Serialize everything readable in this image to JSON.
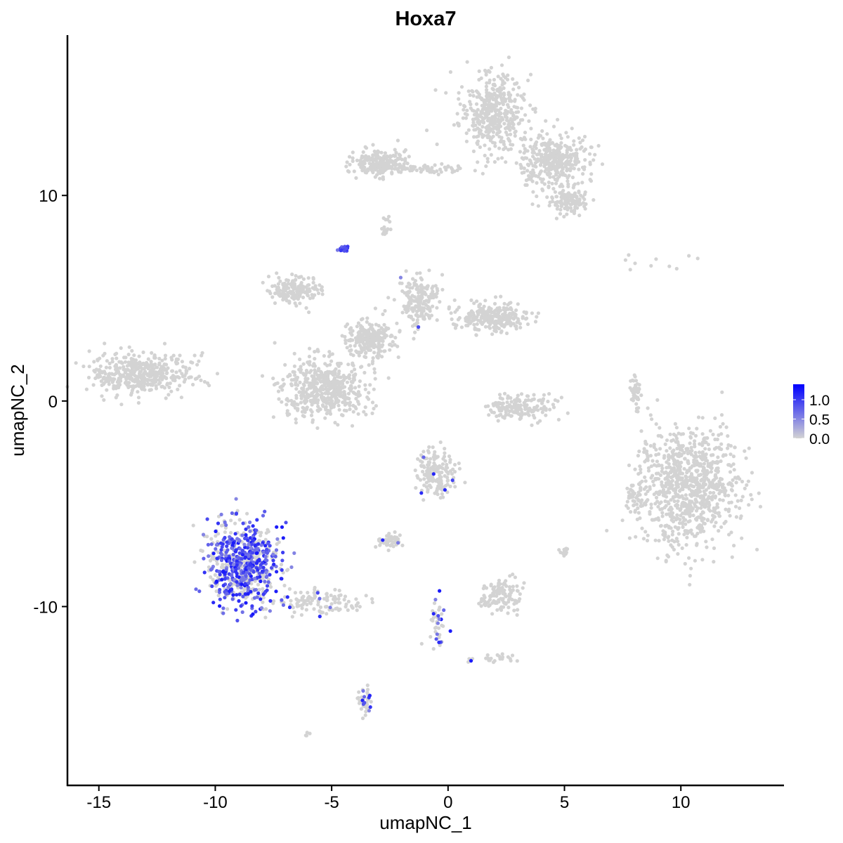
{
  "chart_data": {
    "type": "scatter",
    "title": "Hoxa7",
    "xlabel": "umapNC_1",
    "ylabel": "umapNC_2",
    "xlim": [
      -16.35,
      14.4
    ],
    "ylim": [
      -18.7,
      17.8
    ],
    "xticks": [
      -15,
      -10,
      -5,
      0,
      5,
      10
    ],
    "yticks": [
      -10,
      0,
      10
    ],
    "grid": false,
    "legend": {
      "placement": "right",
      "ticks": [
        "0.0",
        "0.5",
        "1.0"
      ],
      "range": [
        0,
        1.4
      ]
    },
    "colors": {
      "low": "#D3D3D3",
      "high": "#0000FF"
    },
    "clusters": [
      {
        "center": [
          1.9,
          14.0
        ],
        "spread": [
          1.0,
          1.4
        ],
        "n": 420,
        "expr_frac": 0.0
      },
      {
        "center": [
          4.5,
          11.7
        ],
        "spread": [
          1.1,
          0.9
        ],
        "n": 380,
        "expr_frac": 0.0
      },
      {
        "center": [
          5.2,
          9.7
        ],
        "spread": [
          0.6,
          0.4
        ],
        "n": 120,
        "expr_frac": 0.0
      },
      {
        "center": [
          -2.9,
          11.6
        ],
        "spread": [
          0.8,
          0.45
        ],
        "n": 200,
        "expr_frac": 0.0
      },
      {
        "center": [
          -0.9,
          11.3
        ],
        "spread": [
          1.3,
          0.15
        ],
        "n": 60,
        "expr_frac": 0.0
      },
      {
        "center": [
          -13.2,
          1.3
        ],
        "spread": [
          1.5,
          0.75
        ],
        "n": 450,
        "expr_frac": 0.0
      },
      {
        "center": [
          -3.3,
          3.0
        ],
        "spread": [
          0.7,
          0.6
        ],
        "n": 250,
        "expr_frac": 0.01
      },
      {
        "center": [
          -6.6,
          5.4
        ],
        "spread": [
          0.8,
          0.5
        ],
        "n": 160,
        "expr_frac": 0.0
      },
      {
        "center": [
          -5.3,
          0.6
        ],
        "spread": [
          1.3,
          1.0
        ],
        "n": 500,
        "expr_frac": 0.0
      },
      {
        "center": [
          -1.3,
          4.8
        ],
        "spread": [
          0.6,
          0.9
        ],
        "n": 180,
        "expr_frac": 0.01
      },
      {
        "center": [
          1.9,
          4.1
        ],
        "spread": [
          1.1,
          0.5
        ],
        "n": 250,
        "expr_frac": 0.0
      },
      {
        "center": [
          -4.5,
          7.4
        ],
        "spread": [
          0.15,
          0.12
        ],
        "n": 20,
        "expr_frac": 0.9
      },
      {
        "center": [
          3.1,
          -0.3
        ],
        "spread": [
          1.0,
          0.5
        ],
        "n": 160,
        "expr_frac": 0.0
      },
      {
        "center": [
          8.05,
          0.4
        ],
        "spread": [
          0.15,
          0.6
        ],
        "n": 40,
        "expr_frac": 0.0
      },
      {
        "center": [
          10.3,
          -4.2
        ],
        "spread": [
          1.5,
          2.0
        ],
        "n": 900,
        "expr_frac": 0.0
      },
      {
        "center": [
          8.0,
          -4.7
        ],
        "spread": [
          0.3,
          0.5
        ],
        "n": 40,
        "expr_frac": 0.0
      },
      {
        "center": [
          -8.8,
          -8.0
        ],
        "spread": [
          1.05,
          1.4
        ],
        "n": 700,
        "expr_frac": 0.6
      },
      {
        "center": [
          -5.5,
          -9.8
        ],
        "spread": [
          1.3,
          0.4
        ],
        "n": 110,
        "expr_frac": 0.05
      },
      {
        "center": [
          -0.5,
          -3.5
        ],
        "spread": [
          0.6,
          0.8
        ],
        "n": 160,
        "expr_frac": 0.04
      },
      {
        "center": [
          -2.5,
          -6.8
        ],
        "spread": [
          0.4,
          0.25
        ],
        "n": 50,
        "expr_frac": 0.02
      },
      {
        "center": [
          2.3,
          -9.5
        ],
        "spread": [
          0.6,
          0.6
        ],
        "n": 120,
        "expr_frac": 0.0
      },
      {
        "center": [
          -0.5,
          -11.0
        ],
        "spread": [
          0.3,
          1.0
        ],
        "n": 40,
        "expr_frac": 0.25
      },
      {
        "center": [
          1.8,
          -12.5
        ],
        "spread": [
          0.6,
          0.2
        ],
        "n": 25,
        "expr_frac": 0.1
      },
      {
        "center": [
          -3.6,
          -14.6
        ],
        "spread": [
          0.2,
          0.5
        ],
        "n": 40,
        "expr_frac": 0.15
      },
      {
        "center": [
          5.0,
          -7.3
        ],
        "spread": [
          0.2,
          0.2
        ],
        "n": 15,
        "expr_frac": 0.0
      },
      {
        "center": [
          -2.7,
          8.5
        ],
        "spread": [
          0.15,
          0.5
        ],
        "n": 15,
        "expr_frac": 0.0
      },
      {
        "center": [
          9.0,
          6.7
        ],
        "spread": [
          1.2,
          0.3
        ],
        "n": 10,
        "expr_frac": 0.0
      },
      {
        "center": [
          -6.0,
          -16.2
        ],
        "spread": [
          0.1,
          0.1
        ],
        "n": 4,
        "expr_frac": 0.0
      }
    ]
  }
}
